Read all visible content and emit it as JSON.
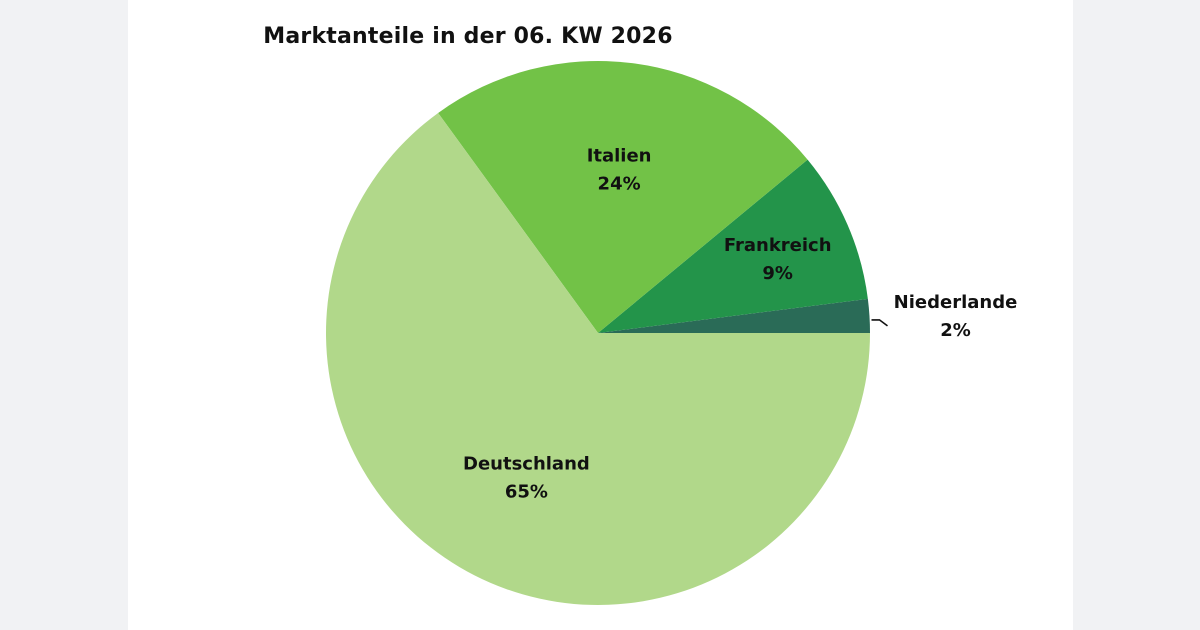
{
  "chart_data": {
    "type": "pie",
    "title": "Marktanteile in der 06. KW 2026",
    "slices": [
      {
        "label": "Deutschland",
        "value": 65,
        "value_label": "65%",
        "color": "#b1d88a"
      },
      {
        "label": "Italien",
        "value": 24,
        "value_label": "24%",
        "color": "#72c247"
      },
      {
        "label": "Frankreich",
        "value": 9,
        "value_label": "9%",
        "color": "#23944a"
      },
      {
        "label": "Niederlande",
        "value": 2,
        "value_label": "2%",
        "color": "#2a6b57"
      }
    ],
    "legend": "none"
  }
}
